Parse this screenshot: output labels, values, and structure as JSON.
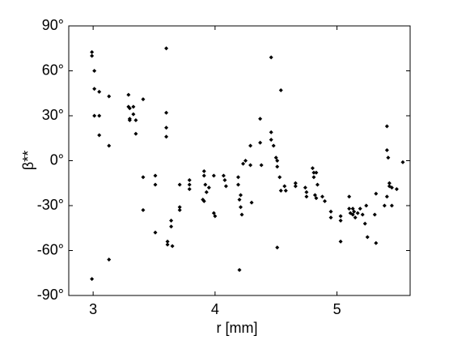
{
  "chart_data": {
    "type": "scatter",
    "xlabel": "r [mm]",
    "ylabel": "β**",
    "color": "#000000",
    "xlim": [
      2.8,
      5.6
    ],
    "ylim": [
      -90,
      90
    ],
    "xticks": [
      3,
      4,
      5
    ],
    "yticks": [
      {
        "value": -90,
        "label": "-90°"
      },
      {
        "value": -60,
        "label": "-60°"
      },
      {
        "value": -30,
        "label": "-30°"
      },
      {
        "value": 0,
        "label": "0°"
      },
      {
        "value": 30,
        "label": "30°"
      },
      {
        "value": 60,
        "label": "60°"
      },
      {
        "value": 90,
        "label": "90°"
      }
    ],
    "grid": false,
    "x": [
      2.99,
      2.99,
      3.01,
      3.01,
      3.01,
      3.05,
      3.05,
      3.05,
      3.13,
      3.13,
      2.99,
      3.13,
      3.29,
      3.29,
      3.3,
      3.3,
      3.3,
      3.33,
      3.33,
      3.35,
      3.35,
      3.41,
      3.41,
      3.41,
      3.51,
      3.51,
      3.51,
      3.6,
      3.6,
      3.6,
      3.6,
      3.61,
      3.61,
      3.64,
      3.64,
      3.65,
      3.71,
      3.71,
      3.71,
      3.79,
      3.79,
      3.79,
      3.91,
      3.91,
      3.9,
      3.91,
      3.92,
      3.93,
      3.95,
      3.99,
      3.99,
      4.0,
      4.07,
      4.08,
      4.09,
      4.19,
      4.19,
      4.2,
      4.21,
      4.21,
      4.22,
      4.2,
      4.23,
      4.25,
      4.29,
      4.29,
      4.3,
      4.37,
      4.37,
      4.38,
      4.46,
      4.46,
      4.46,
      4.48,
      4.5,
      4.51,
      4.51,
      4.51,
      4.54,
      4.53,
      4.54,
      4.57,
      4.58,
      4.66,
      4.66,
      4.74,
      4.75,
      4.75,
      4.8,
      4.81,
      4.81,
      4.83,
      4.84,
      4.82,
      4.83,
      4.88,
      4.9,
      4.95,
      4.95,
      5.03,
      5.03,
      5.03,
      5.1,
      5.1,
      5.11,
      5.13,
      5.13,
      5.14,
      5.15,
      5.17,
      5.19,
      5.21,
      5.23,
      5.25,
      5.24,
      5.31,
      5.32,
      5.32,
      5.39,
      5.41,
      5.41,
      5.42,
      5.41,
      5.43,
      5.43,
      5.45,
      5.45,
      5.49,
      5.54
    ],
    "y": [
      72.5,
      70,
      60,
      48,
      30,
      46,
      30,
      17,
      43,
      10,
      -79,
      -66,
      44,
      36,
      35,
      28,
      27,
      36,
      31,
      27,
      18,
      41,
      -11,
      -33,
      -10,
      -16,
      -48,
      75,
      32,
      22,
      16,
      -54,
      -56,
      -40,
      -44,
      -57,
      -31,
      -33,
      -16,
      -13,
      -16,
      -19,
      -7,
      -10,
      -26,
      -27,
      -16,
      -21,
      -18,
      -10,
      -35,
      -37,
      -10,
      -13,
      -17,
      -11,
      -16,
      -26,
      -23,
      -31,
      -36,
      -73,
      -2,
      0,
      10,
      -3,
      -28,
      28,
      12,
      -3,
      69,
      19,
      14,
      10,
      2,
      0,
      -4,
      -58,
      47,
      -11,
      -20,
      -17,
      -20,
      -15,
      -17,
      -18,
      -21,
      -24,
      -5,
      -8,
      -11,
      -8,
      -16,
      -23,
      -25,
      -24,
      -27,
      -34,
      -38,
      -37,
      -40,
      -54,
      -24,
      -32,
      -35,
      -32,
      -36,
      -34,
      -38,
      -35,
      -32,
      -36,
      -42,
      -51,
      -30,
      -36,
      -22,
      -55,
      -30,
      23,
      7,
      2,
      -24,
      -15,
      -17,
      -18,
      -30,
      -19,
      -1
    ]
  }
}
